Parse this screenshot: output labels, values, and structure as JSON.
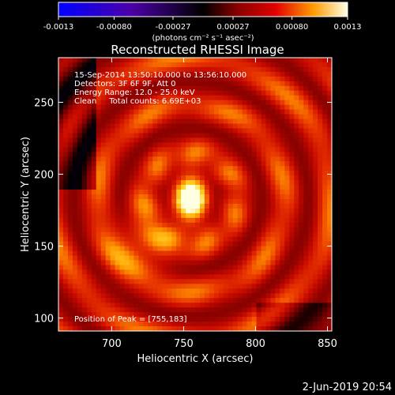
{
  "chart_data": {
    "type": "heatmap",
    "title": "Reconstructed RHESSI Image",
    "colorbar": {
      "ticks": [
        "-0.0013",
        "-0.00080",
        "-0.00027",
        "0.00027",
        "0.00080",
        "0.0013"
      ],
      "range": [
        -0.0013,
        0.0013
      ],
      "unit_label": "(photons cm⁻² s⁻¹ asec⁻²)"
    },
    "annotations": [
      "15-Sep-2014 13:50:10.000 to 13:56:10.000",
      "Detectors: 3F 6F 9F, Att 0",
      "Energy Range: 12.0 - 25.0 keV",
      "Clean     Total counts: 6.69E+03"
    ],
    "peak_label": "Position of Peak = [755,183]",
    "peak": [
      755,
      183
    ],
    "xlabel": "Heliocentric X (arcsec)",
    "ylabel": "Heliocentric Y (arcsec)",
    "xlim": [
      663,
      853
    ],
    "ylim": [
      91,
      281
    ],
    "xticks": [
      700,
      750,
      800,
      850
    ],
    "yticks": [
      100,
      150,
      200,
      250
    ],
    "grid": false
  },
  "footer": {
    "date": "2-Jun-2019 20:54"
  }
}
